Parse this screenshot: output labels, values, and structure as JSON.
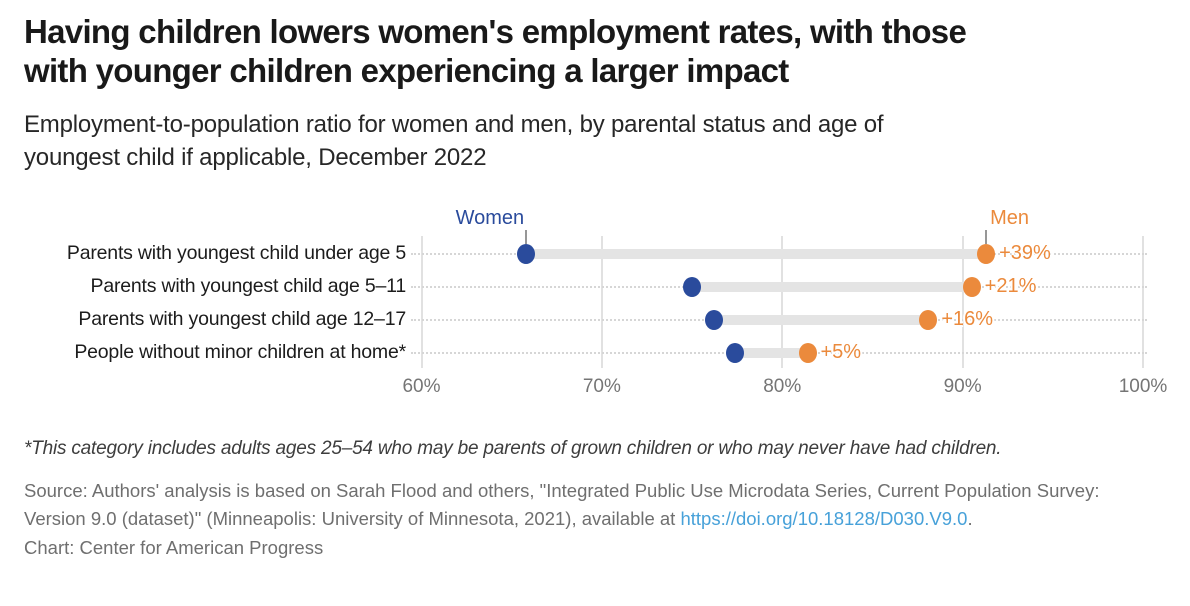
{
  "header": {
    "title": "Having children lowers women's employment rates, with those\nwith younger children experiencing a larger impact",
    "subtitle": "Employment-to-population ratio for women and men, by parental status and age of\nyoungest child if applicable, December 2022"
  },
  "chart_data": {
    "type": "dumbbell",
    "categories": [
      "Parents with youngest child under age 5",
      "Parents with youngest child age 5–11",
      "Parents with youngest child age 12–17",
      "People without minor children at home*"
    ],
    "series": [
      {
        "name": "Women",
        "color": "#2A4B9C",
        "values": [
          65.8,
          75.0,
          76.2,
          77.4
        ]
      },
      {
        "name": "Men",
        "color": "#EB8A3C",
        "values": [
          91.3,
          90.5,
          88.1,
          81.4
        ]
      }
    ],
    "diff_labels": [
      "+39%",
      "+21%",
      "+16%",
      "+5%"
    ],
    "x_ticks": [
      60,
      70,
      80,
      90,
      100
    ],
    "x_tick_labels": [
      "60%",
      "70%",
      "80%",
      "90%",
      "100%"
    ],
    "xlim": [
      60,
      100
    ],
    "unit": "percent",
    "grid": "vertical solid gridlines at ticks; dotted horizontal guide per row",
    "legend_position": "labels above first row pointing to dots"
  },
  "footer": {
    "footnote": "*This category includes adults ages 25–54 who may be parents of grown children or who may never have had children.",
    "source_line1": "Source: Authors' analysis is based on Sarah Flood and others, \"Integrated Public Use Microdata Series, Current Population Survey:",
    "source_line2_prefix": "Version 9.0 (dataset)\" (Minneapolis: University of Minnesota, 2021), available at ",
    "source_link": "https://doi.org/10.18128/D030.V9.0",
    "source_suffix": ".",
    "credit": "Chart: Center for American Progress"
  },
  "colors": {
    "women": "#2A4B9C",
    "men": "#EB8A3C",
    "connector_bar": "#E4E4E4",
    "gridline": "#E1E1E1",
    "link": "#47A1D9",
    "title_text": "#191919",
    "muted_text": "#6F6F6F"
  }
}
